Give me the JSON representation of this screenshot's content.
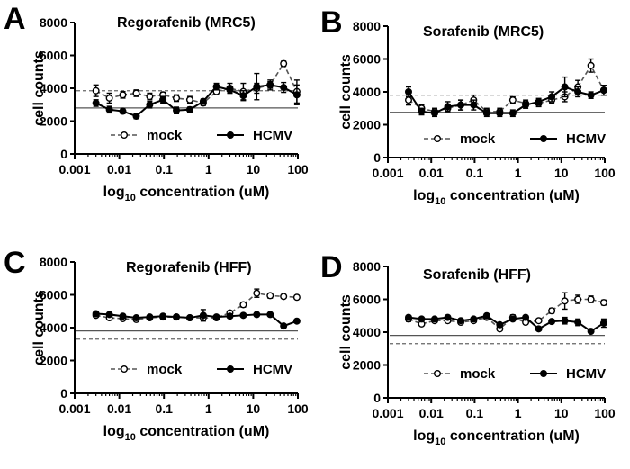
{
  "chart_data": [
    {
      "type": "line",
      "panel": "A",
      "title": "Regorafenib (MRC5)",
      "xlabel": "log10 concentration (uM)",
      "ylabel": "cell counts",
      "xscale": "log",
      "xlim": [
        0.001,
        100
      ],
      "ylim": [
        0,
        8000
      ],
      "xticks": [
        "0.001",
        "0.01",
        "0.1",
        "1",
        "10",
        "100"
      ],
      "yticks": [
        "0",
        "2000",
        "4000",
        "6000",
        "8000"
      ],
      "legend": [
        "mock",
        "HCMV"
      ],
      "legend_position": "bottom",
      "reference_lines": [
        {
          "name": "mock",
          "style": "dashed",
          "value": 3850
        },
        {
          "name": "HCMV",
          "style": "solid",
          "value": 2800
        }
      ],
      "x": [
        0.003,
        0.006,
        0.012,
        0.024,
        0.048,
        0.095,
        0.19,
        0.38,
        0.76,
        1.5,
        3,
        6,
        12,
        24,
        48,
        95
      ],
      "series": [
        {
          "name": "mock",
          "style": "dashed",
          "marker": "open-circle",
          "values": [
            3850,
            3400,
            3600,
            3700,
            3500,
            3600,
            3400,
            3300,
            3100,
            3800,
            4000,
            3800,
            4000,
            4200,
            5500,
            3800
          ],
          "errors": [
            350,
            300,
            200,
            200,
            200,
            150,
            200,
            200,
            150,
            200,
            300,
            500,
            300,
            200,
            150,
            700
          ]
        },
        {
          "name": "HCMV",
          "style": "solid",
          "marker": "filled-circle",
          "values": [
            3100,
            2700,
            2600,
            2300,
            3000,
            3300,
            2650,
            2700,
            3200,
            4100,
            3900,
            3550,
            4100,
            4200,
            4050,
            3600
          ],
          "errors": [
            200,
            200,
            150,
            150,
            200,
            200,
            200,
            150,
            150,
            200,
            200,
            300,
            800,
            300,
            300,
            600
          ]
        }
      ]
    },
    {
      "type": "line",
      "panel": "B",
      "title": "Sorafenib (MRC5)",
      "xlabel": "log10 concentration (uM)",
      "ylabel": "cell counts",
      "xscale": "log",
      "xlim": [
        0.001,
        100
      ],
      "ylim": [
        0,
        8000
      ],
      "xticks": [
        "0.001",
        "0.01",
        "0.1",
        "1",
        "10",
        "100"
      ],
      "yticks": [
        "0",
        "2000",
        "4000",
        "6000",
        "8000"
      ],
      "legend": [
        "mock",
        "HCMV"
      ],
      "legend_position": "bottom",
      "reference_lines": [
        {
          "name": "mock",
          "style": "dashed",
          "value": 3800
        },
        {
          "name": "HCMV",
          "style": "solid",
          "value": 2750
        }
      ],
      "x": [
        0.003,
        0.006,
        0.012,
        0.024,
        0.048,
        0.095,
        0.19,
        0.38,
        0.76,
        1.5,
        3,
        6,
        12,
        24,
        48,
        95
      ],
      "series": [
        {
          "name": "mock",
          "style": "dashed",
          "marker": "open-circle",
          "values": [
            3500,
            3000,
            2800,
            3000,
            3200,
            3500,
            2800,
            2800,
            3500,
            3300,
            3300,
            3500,
            3700,
            4300,
            5600,
            4100
          ],
          "errors": [
            300,
            200,
            200,
            200,
            300,
            300,
            200,
            200,
            200,
            200,
            200,
            200,
            300,
            400,
            400,
            300
          ]
        },
        {
          "name": "HCMV",
          "style": "solid",
          "marker": "filled-circle",
          "values": [
            4000,
            2800,
            2700,
            3100,
            3200,
            3200,
            2700,
            2700,
            2700,
            3200,
            3400,
            3700,
            4300,
            4000,
            3800,
            4100
          ],
          "errors": [
            300,
            200,
            200,
            300,
            300,
            300,
            200,
            200,
            200,
            200,
            200,
            300,
            600,
            300,
            200,
            300
          ]
        }
      ]
    },
    {
      "type": "line",
      "panel": "C",
      "title": "Regorafenib (HFF)",
      "xlabel": "log10 concentration (uM)",
      "ylabel": "cell counts",
      "xscale": "log",
      "xlim": [
        0.001,
        100
      ],
      "ylim": [
        0,
        8000
      ],
      "xticks": [
        "0.001",
        "0.01",
        "0.1",
        "1",
        "10",
        "100"
      ],
      "yticks": [
        "0",
        "2000",
        "4000",
        "6000",
        "8000"
      ],
      "legend": [
        "mock",
        "HCMV"
      ],
      "legend_position": "bottom",
      "reference_lines": [
        {
          "name": "HCMV",
          "style": "solid",
          "value": 3800
        },
        {
          "name": "mock",
          "style": "dashed",
          "value": 3300
        }
      ],
      "x": [
        0.003,
        0.006,
        0.012,
        0.024,
        0.048,
        0.095,
        0.19,
        0.38,
        0.76,
        1.5,
        3,
        6,
        12,
        24,
        48,
        95
      ],
      "series": [
        {
          "name": "mock",
          "style": "dashed",
          "marker": "open-circle",
          "values": [
            4750,
            4600,
            4550,
            4500,
            4600,
            4650,
            4650,
            4600,
            4600,
            4600,
            4900,
            5400,
            6100,
            5950,
            5900,
            5850
          ],
          "errors": [
            100,
            100,
            100,
            100,
            100,
            100,
            100,
            100,
            100,
            100,
            100,
            150,
            250,
            150,
            100,
            100
          ]
        },
        {
          "name": "HCMV",
          "style": "solid",
          "marker": "filled-circle",
          "values": [
            4850,
            4800,
            4700,
            4600,
            4650,
            4700,
            4650,
            4600,
            4750,
            4650,
            4700,
            4750,
            4800,
            4800,
            4100,
            4400
          ],
          "errors": [
            100,
            100,
            100,
            100,
            100,
            100,
            100,
            100,
            350,
            100,
            100,
            100,
            100,
            100,
            100,
            100
          ]
        }
      ]
    },
    {
      "type": "line",
      "panel": "D",
      "title": "Sorafenib (HFF)",
      "xlabel": "log10 concentration (uM)",
      "ylabel": "cell counts",
      "xscale": "log",
      "xlim": [
        0.001,
        100
      ],
      "ylim": [
        0,
        8000
      ],
      "xticks": [
        "0.001",
        "0.01",
        "0.1",
        "1",
        "10",
        "100"
      ],
      "yticks": [
        "0",
        "2000",
        "4000",
        "6000",
        "8000"
      ],
      "legend": [
        "mock",
        "HCMV"
      ],
      "legend_position": "bottom",
      "reference_lines": [
        {
          "name": "HCMV",
          "style": "solid",
          "value": 3800
        },
        {
          "name": "mock",
          "style": "dashed",
          "value": 3300
        }
      ],
      "x": [
        0.003,
        0.006,
        0.012,
        0.024,
        0.048,
        0.095,
        0.19,
        0.38,
        0.76,
        1.5,
        3,
        6,
        12,
        24,
        48,
        95
      ],
      "series": [
        {
          "name": "mock",
          "style": "dashed",
          "marker": "open-circle",
          "values": [
            4800,
            4500,
            4700,
            4700,
            4600,
            4700,
            4900,
            4200,
            4900,
            4600,
            4700,
            5300,
            5900,
            6000,
            6000,
            5800
          ],
          "errors": [
            150,
            100,
            100,
            100,
            100,
            100,
            150,
            100,
            150,
            100,
            100,
            150,
            500,
            250,
            200,
            150
          ]
        },
        {
          "name": "HCMV",
          "style": "solid",
          "marker": "filled-circle",
          "values": [
            4900,
            4800,
            4800,
            4900,
            4700,
            4800,
            5000,
            4450,
            4800,
            4900,
            4200,
            4650,
            4700,
            4600,
            4050,
            4550
          ],
          "errors": [
            100,
            100,
            100,
            100,
            100,
            100,
            100,
            100,
            100,
            100,
            100,
            100,
            200,
            200,
            100,
            250
          ]
        }
      ]
    }
  ],
  "panels": [
    {
      "letter": "A",
      "log_prefix": "log",
      "log_sub": "10",
      "log_suffix": " concentration (uM)"
    },
    {
      "letter": "B",
      "log_prefix": "log",
      "log_sub": "10",
      "log_suffix": " concentration (uM)"
    },
    {
      "letter": "C",
      "log_prefix": "log",
      "log_sub": "10",
      "log_suffix": " concentration (uM)"
    },
    {
      "letter": "D",
      "log_prefix": "log",
      "log_sub": "10",
      "log_suffix": " concentration (uM)"
    }
  ]
}
